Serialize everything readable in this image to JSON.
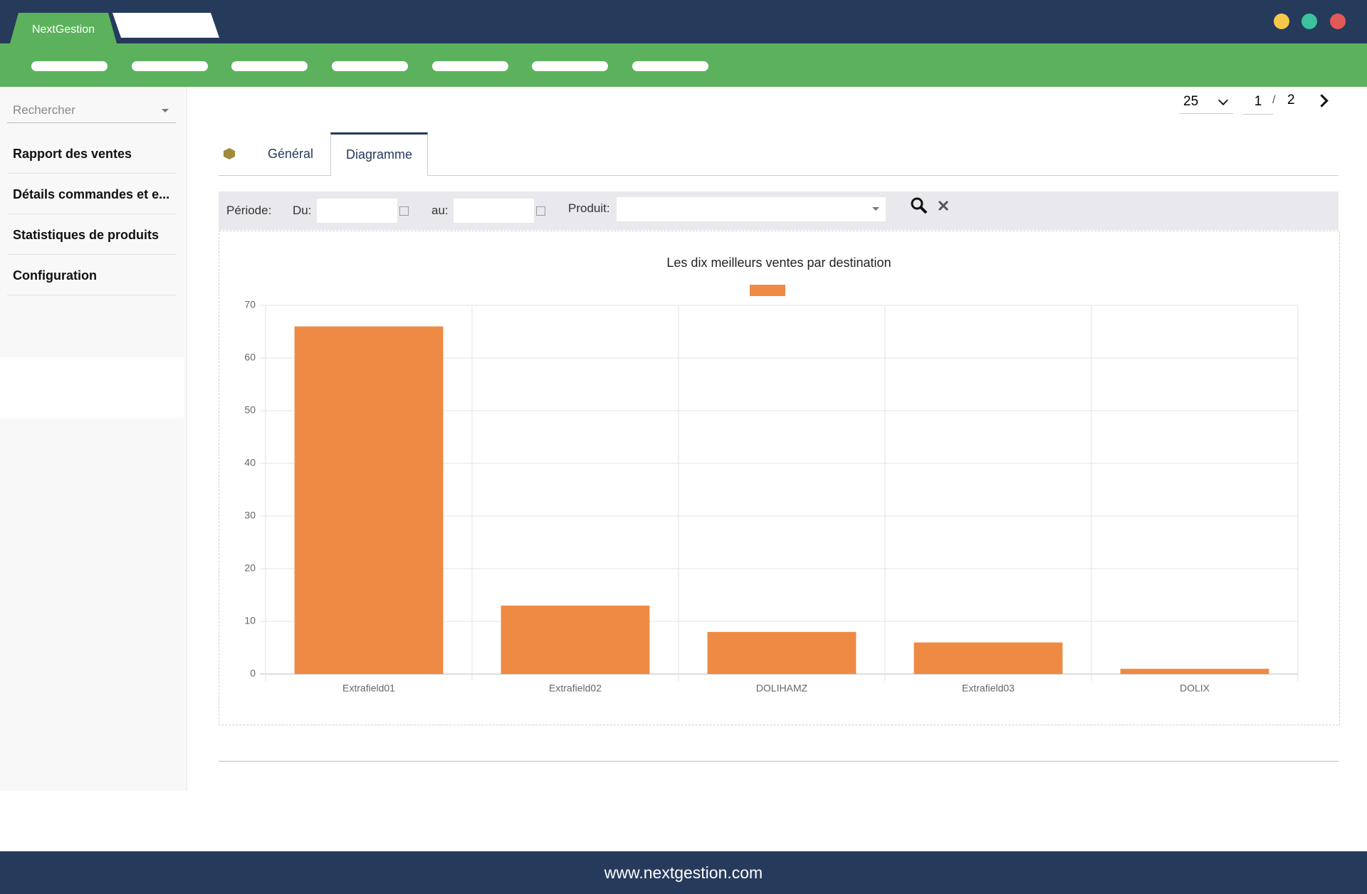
{
  "header": {
    "app_tab": "NextGestion"
  },
  "sidebar": {
    "search_placeholder": "Rechercher",
    "items": [
      "Rapport des ventes",
      "Détails commandes et e...",
      "Statistiques de produits",
      "Configuration"
    ]
  },
  "pagination": {
    "per_page": "25",
    "page": "1",
    "separator": "/",
    "total": "2"
  },
  "tabs": [
    "Général",
    "Diagramme"
  ],
  "filters": {
    "period": "Période:",
    "from": "Du:",
    "to": "au:",
    "product": "Produit:"
  },
  "chart_data": {
    "type": "bar",
    "title": "Les dix meilleurs ventes par destination",
    "categories": [
      "Extrafield01",
      "Extrafield02",
      "DOLIHAMZ",
      "Extrafield03",
      "DOLIX"
    ],
    "values": [
      66,
      13,
      8,
      6,
      1
    ],
    "color": "#ee8a43",
    "ylim": [
      0,
      70
    ],
    "yticks": [
      0,
      10,
      20,
      30,
      40,
      50,
      60,
      70
    ],
    "grid": true
  },
  "footer": {
    "url": "www.nextgestion.com"
  }
}
